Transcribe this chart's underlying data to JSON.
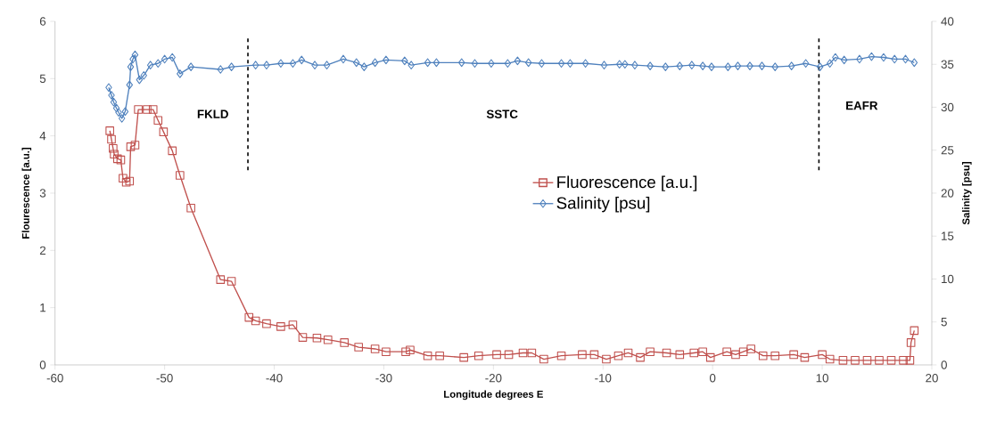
{
  "chart_data": {
    "type": "line",
    "xlabel": "Longitude degrees E",
    "ylabel": "Flourescence [a.u.]",
    "y2label": "Salinity [psu]",
    "xlim": [
      -60,
      20
    ],
    "xticks": [
      -60,
      -50,
      -40,
      -30,
      -20,
      -10,
      0,
      10,
      20
    ],
    "ylim": [
      0,
      6
    ],
    "yticks": [
      0,
      1,
      2,
      3,
      4,
      5,
      6
    ],
    "y2lim": [
      0,
      40
    ],
    "y2ticks": [
      0,
      5,
      10,
      15,
      20,
      25,
      30,
      35,
      40
    ],
    "legend": "center",
    "series": [
      {
        "name": "Fluorescence [a.u.]",
        "color": "#c0504d",
        "marker": "square",
        "line_style": "solid",
        "x": [
          -55.0,
          -54.85,
          -54.7,
          -54.6,
          -54.3,
          -54.0,
          -53.8,
          -53.5,
          -53.2,
          -53.1,
          -52.7,
          -52.4,
          -51.6,
          -51.05,
          -50.6,
          -50.1,
          -49.3,
          -48.6,
          -47.6,
          -44.9,
          -43.9,
          -42.3,
          -41.7,
          -40.7,
          -39.4,
          -38.3,
          -37.4,
          -36.1,
          -35.1,
          -33.6,
          -32.3,
          -30.8,
          -29.8,
          -28.0,
          -27.6,
          -26.0,
          -24.9,
          -22.7,
          -21.35,
          -19.7,
          -18.6,
          -17.3,
          -16.5,
          -15.4,
          -13.8,
          -11.9,
          -10.8,
          -9.7,
          -8.6,
          -7.7,
          -6.6,
          -5.7,
          -4.2,
          -3.0,
          -1.7,
          -0.9,
          -0.2,
          1.3,
          2.1,
          2.8,
          3.5,
          4.6,
          5.7,
          7.4,
          8.4,
          10.0,
          10.7,
          11.9,
          13.0,
          14.1,
          15.2,
          16.3,
          17.4,
          18.0,
          18.1,
          18.4
        ],
        "values": [
          4.09,
          3.94,
          3.78,
          3.68,
          3.6,
          3.58,
          3.26,
          3.19,
          3.21,
          3.81,
          3.84,
          4.46,
          4.46,
          4.46,
          4.27,
          4.07,
          3.74,
          3.31,
          2.74,
          1.49,
          1.46,
          0.83,
          0.77,
          0.72,
          0.67,
          0.7,
          0.48,
          0.47,
          0.44,
          0.39,
          0.31,
          0.28,
          0.23,
          0.23,
          0.26,
          0.16,
          0.16,
          0.13,
          0.16,
          0.18,
          0.18,
          0.21,
          0.21,
          0.1,
          0.16,
          0.18,
          0.18,
          0.1,
          0.16,
          0.21,
          0.13,
          0.23,
          0.21,
          0.18,
          0.21,
          0.23,
          0.13,
          0.23,
          0.18,
          0.23,
          0.28,
          0.16,
          0.16,
          0.18,
          0.13,
          0.18,
          0.1,
          0.08,
          0.08,
          0.08,
          0.08,
          0.08,
          0.08,
          0.08,
          0.39,
          0.6
        ]
      },
      {
        "name": "Salinity [psu]",
        "color": "#4f81bd",
        "marker": "diamond",
        "line_style": "solid",
        "axis": "y2",
        "x": [
          -55.1,
          -54.85,
          -54.65,
          -54.4,
          -54.2,
          -53.9,
          -53.6,
          -53.2,
          -53.1,
          -52.9,
          -52.7,
          -52.3,
          -51.9,
          -51.3,
          -50.6,
          -50.0,
          -49.3,
          -48.6,
          -47.6,
          -44.9,
          -43.9,
          -41.7,
          -40.7,
          -39.4,
          -38.3,
          -37.5,
          -36.3,
          -35.2,
          -33.7,
          -32.5,
          -31.8,
          -30.8,
          -29.8,
          -28.1,
          -27.5,
          -26.0,
          -25.2,
          -22.9,
          -21.7,
          -20.2,
          -18.7,
          -17.8,
          -16.8,
          -15.6,
          -13.8,
          -13.0,
          -11.6,
          -9.9,
          -8.5,
          -8.0,
          -7.1,
          -5.7,
          -4.3,
          -3.0,
          -1.9,
          -0.9,
          -0.1,
          1.4,
          2.3,
          3.4,
          4.5,
          5.7,
          7.2,
          8.5,
          9.8,
          10.7,
          11.2,
          12.0,
          13.4,
          14.5,
          15.6,
          16.6,
          17.6,
          18.4
        ],
        "values": [
          32.3,
          31.4,
          30.6,
          29.9,
          29.4,
          28.7,
          29.5,
          32.6,
          34.7,
          35.6,
          36.1,
          33.2,
          33.7,
          34.9,
          35.1,
          35.6,
          35.8,
          33.9,
          34.7,
          34.4,
          34.7,
          34.9,
          34.9,
          35.1,
          35.1,
          35.5,
          34.9,
          34.9,
          35.6,
          35.2,
          34.7,
          35.2,
          35.5,
          35.4,
          34.9,
          35.2,
          35.2,
          35.2,
          35.1,
          35.1,
          35.1,
          35.4,
          35.2,
          35.1,
          35.1,
          35.1,
          35.1,
          34.9,
          35.0,
          35.0,
          34.9,
          34.8,
          34.7,
          34.8,
          34.9,
          34.8,
          34.7,
          34.7,
          34.8,
          34.8,
          34.8,
          34.7,
          34.8,
          35.1,
          34.7,
          35.1,
          35.8,
          35.5,
          35.6,
          35.9,
          35.8,
          35.6,
          35.6,
          35.2
        ]
      }
    ],
    "ref_lines": [
      {
        "axis": "x",
        "value": -42.4,
        "color": "#000000",
        "line_style": "dashed"
      },
      {
        "axis": "x",
        "value": 9.7,
        "color": "#000000",
        "line_style": "dashed"
      }
    ],
    "annotations": [
      "FKLD",
      "SSTC",
      "EAFR"
    ]
  }
}
